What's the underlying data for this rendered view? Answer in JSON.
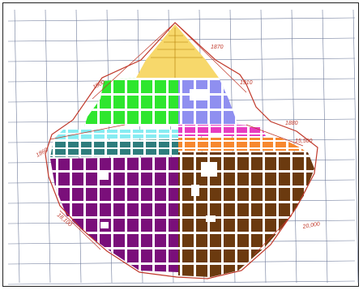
{
  "map": {
    "annotations": [
      "1870",
      "1910",
      "1900",
      "1860",
      "1880",
      "15,500",
      "18,100",
      "20,000"
    ],
    "zones": [
      {
        "id": "north-tip",
        "color": "#f7d86b"
      },
      {
        "id": "northwest",
        "color": "#2ee62e"
      },
      {
        "id": "northeast",
        "color": "#8f8ff0"
      },
      {
        "id": "west-band-cyan",
        "color": "#86ecf2"
      },
      {
        "id": "west-band-teal",
        "color": "#2e7d7d"
      },
      {
        "id": "east-band-magenta",
        "color": "#e83cc0"
      },
      {
        "id": "east-band-orange",
        "color": "#f7882f"
      },
      {
        "id": "southwest",
        "color": "#7a0f7a"
      },
      {
        "id": "southeast",
        "color": "#6b3a0f"
      }
    ],
    "colors": {
      "grid": "#6e7a9a",
      "boundary": "#c0392b",
      "frame": "#222222"
    }
  }
}
